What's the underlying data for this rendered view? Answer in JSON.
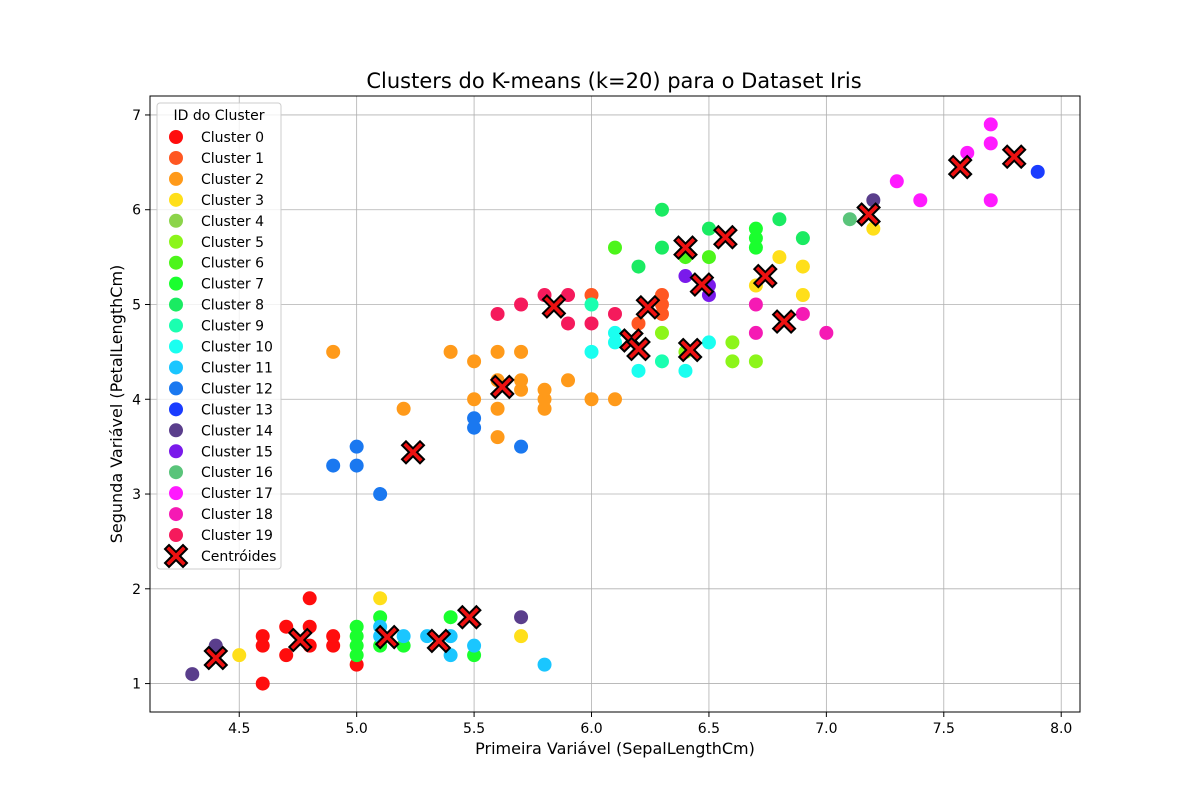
{
  "chart_data": {
    "type": "scatter",
    "title": "Clusters do K-means (k=20) para o Dataset Iris",
    "xlabel": "Primeira Variável (SepalLengthCm)",
    "ylabel": "Segunda Variável (PetalLengthCm)",
    "xlim": [
      4.12,
      8.08
    ],
    "ylim": [
      0.7,
      7.2
    ],
    "xticks": [
      4.5,
      5.0,
      5.5,
      6.0,
      6.5,
      7.0,
      7.5,
      8.0
    ],
    "xtick_labels": [
      "4.5",
      "5.0",
      "5.5",
      "6.0",
      "6.5",
      "7.0",
      "7.5",
      "8.0"
    ],
    "yticks": [
      1,
      2,
      3,
      4,
      5,
      6,
      7
    ],
    "ytick_labels": [
      "1",
      "2",
      "3",
      "4",
      "5",
      "6",
      "7"
    ],
    "grid": true,
    "legend_placement": "upper-left",
    "legend_title": "ID do Cluster",
    "series": [
      {
        "name": "Cluster 0",
        "color": "#ff0d0d",
        "points": [
          [
            4.6,
            1.0
          ],
          [
            4.6,
            1.4
          ],
          [
            4.6,
            1.5
          ],
          [
            4.7,
            1.3
          ],
          [
            4.7,
            1.6
          ],
          [
            4.8,
            1.4
          ],
          [
            4.8,
            1.6
          ],
          [
            4.8,
            1.9
          ],
          [
            4.9,
            1.4
          ],
          [
            4.9,
            1.5
          ],
          [
            5.0,
            1.2
          ]
        ]
      },
      {
        "name": "Cluster 1",
        "color": "#ff5722",
        "points": [
          [
            6.0,
            5.1
          ],
          [
            6.2,
            4.8
          ],
          [
            6.3,
            4.9
          ],
          [
            6.3,
            5.0
          ],
          [
            6.3,
            5.1
          ]
        ]
      },
      {
        "name": "Cluster 2",
        "color": "#ff9a1a",
        "points": [
          [
            4.9,
            4.5
          ],
          [
            5.2,
            3.9
          ],
          [
            5.4,
            4.5
          ],
          [
            5.5,
            4.0
          ],
          [
            5.5,
            4.4
          ],
          [
            5.6,
            3.6
          ],
          [
            5.6,
            3.9
          ],
          [
            5.6,
            4.2
          ],
          [
            5.6,
            4.5
          ],
          [
            5.7,
            4.1
          ],
          [
            5.7,
            4.2
          ],
          [
            5.7,
            4.5
          ],
          [
            5.8,
            3.9
          ],
          [
            5.8,
            4.0
          ],
          [
            5.8,
            4.1
          ],
          [
            5.9,
            4.2
          ],
          [
            6.0,
            4.0
          ],
          [
            6.1,
            4.0
          ]
        ]
      },
      {
        "name": "Cluster 3",
        "color": "#ffdf1a",
        "points": [
          [
            4.5,
            1.3
          ],
          [
            5.1,
            1.9
          ],
          [
            5.7,
            1.5
          ],
          [
            6.7,
            5.2
          ],
          [
            6.8,
            5.5
          ],
          [
            6.9,
            5.1
          ],
          [
            6.9,
            5.4
          ],
          [
            7.2,
            5.8
          ]
        ]
      },
      {
        "name": "Cluster 4",
        "color": "#8cd44a",
        "points": []
      },
      {
        "name": "Cluster 5",
        "color": "#8cf51a",
        "points": [
          [
            6.3,
            4.7
          ],
          [
            6.4,
            4.5
          ],
          [
            6.6,
            4.4
          ],
          [
            6.6,
            4.6
          ],
          [
            6.7,
            4.4
          ]
        ]
      },
      {
        "name": "Cluster 6",
        "color": "#4cf51a",
        "points": [
          [
            6.1,
            5.6
          ],
          [
            6.4,
            5.5
          ],
          [
            6.5,
            5.5
          ]
        ]
      },
      {
        "name": "Cluster 7",
        "color": "#1aff2e",
        "points": [
          [
            5.0,
            1.3
          ],
          [
            5.0,
            1.4
          ],
          [
            5.0,
            1.5
          ],
          [
            5.0,
            1.6
          ],
          [
            5.1,
            1.4
          ],
          [
            5.1,
            1.7
          ],
          [
            5.2,
            1.4
          ],
          [
            5.4,
            1.7
          ],
          [
            5.5,
            1.3
          ],
          [
            6.7,
            5.6
          ],
          [
            6.7,
            5.7
          ],
          [
            6.7,
            5.8
          ]
        ]
      },
      {
        "name": "Cluster 8",
        "color": "#1aeb62",
        "points": [
          [
            6.2,
            5.4
          ],
          [
            6.3,
            5.6
          ],
          [
            6.3,
            6.0
          ],
          [
            6.5,
            5.8
          ],
          [
            6.8,
            5.9
          ],
          [
            6.9,
            5.7
          ]
        ]
      },
      {
        "name": "Cluster 9",
        "color": "#1affb0",
        "points": [
          [
            6.0,
            5.0
          ],
          [
            6.3,
            4.4
          ]
        ]
      },
      {
        "name": "Cluster 10",
        "color": "#1afff0",
        "points": [
          [
            6.0,
            4.5
          ],
          [
            6.1,
            4.6
          ],
          [
            6.1,
            4.7
          ],
          [
            6.2,
            4.3
          ],
          [
            6.4,
            4.3
          ],
          [
            6.5,
            4.6
          ]
        ]
      },
      {
        "name": "Cluster 11",
        "color": "#1ac6ff",
        "points": [
          [
            5.1,
            1.5
          ],
          [
            5.1,
            1.6
          ],
          [
            5.2,
            1.5
          ],
          [
            5.3,
            1.5
          ],
          [
            5.4,
            1.3
          ],
          [
            5.4,
            1.5
          ],
          [
            5.5,
            1.4
          ],
          [
            5.8,
            1.2
          ]
        ]
      },
      {
        "name": "Cluster 12",
        "color": "#1a78f0",
        "points": [
          [
            4.9,
            3.3
          ],
          [
            5.0,
            3.3
          ],
          [
            5.0,
            3.5
          ],
          [
            5.1,
            3.0
          ],
          [
            5.5,
            3.7
          ],
          [
            5.5,
            3.8
          ],
          [
            5.7,
            3.5
          ]
        ]
      },
      {
        "name": "Cluster 13",
        "color": "#1a3cff",
        "points": [
          [
            7.9,
            6.4
          ]
        ]
      },
      {
        "name": "Cluster 14",
        "color": "#5a3e8c",
        "points": [
          [
            4.3,
            1.1
          ],
          [
            4.4,
            1.4
          ],
          [
            5.7,
            1.7
          ],
          [
            7.2,
            6.1
          ]
        ]
      },
      {
        "name": "Cluster 15",
        "color": "#7a1aeb",
        "points": [
          [
            6.4,
            5.3
          ],
          [
            6.5,
            5.1
          ],
          [
            6.5,
            5.2
          ]
        ]
      },
      {
        "name": "Cluster 16",
        "color": "#5ac47a",
        "points": [
          [
            7.1,
            5.9
          ]
        ]
      },
      {
        "name": "Cluster 17",
        "color": "#ff1aff",
        "points": [
          [
            7.3,
            6.3
          ],
          [
            7.4,
            6.1
          ],
          [
            7.6,
            6.6
          ],
          [
            7.7,
            6.1
          ],
          [
            7.7,
            6.7
          ],
          [
            7.7,
            6.9
          ]
        ]
      },
      {
        "name": "Cluster 18",
        "color": "#f51ab4",
        "points": [
          [
            6.7,
            4.7
          ],
          [
            6.7,
            5.0
          ],
          [
            6.9,
            4.9
          ],
          [
            7.0,
            4.7
          ]
        ]
      },
      {
        "name": "Cluster 19",
        "color": "#f51a5c",
        "points": [
          [
            5.6,
            4.9
          ],
          [
            5.7,
            5.0
          ],
          [
            5.8,
            5.1
          ],
          [
            5.9,
            4.8
          ],
          [
            5.9,
            5.1
          ],
          [
            6.0,
            4.8
          ],
          [
            6.1,
            4.9
          ]
        ]
      }
    ],
    "centroids": {
      "name": "Centróides",
      "color": "#ee1111",
      "points": [
        [
          4.4,
          1.27
        ],
        [
          4.76,
          1.46
        ],
        [
          5.13,
          1.49
        ],
        [
          5.35,
          1.45
        ],
        [
          5.48,
          1.7
        ],
        [
          5.24,
          3.44
        ],
        [
          5.62,
          4.13
        ],
        [
          5.84,
          4.98
        ],
        [
          6.17,
          4.62
        ],
        [
          6.2,
          4.53
        ],
        [
          6.24,
          4.97
        ],
        [
          6.42,
          4.52
        ],
        [
          6.4,
          5.6
        ],
        [
          6.47,
          5.21
        ],
        [
          6.57,
          5.71
        ],
        [
          6.74,
          5.3
        ],
        [
          6.82,
          4.82
        ],
        [
          7.18,
          5.95
        ],
        [
          7.57,
          6.45
        ],
        [
          7.8,
          6.56
        ]
      ]
    }
  }
}
